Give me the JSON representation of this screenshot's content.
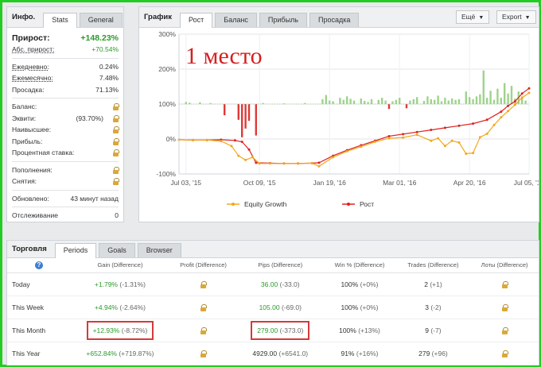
{
  "info": {
    "title": "Инфо.",
    "tabs": [
      "Stats",
      "General"
    ],
    "growth_label": "Прирост:",
    "growth_value": "+148.23%",
    "abs_label": "Абс. прирост:",
    "abs_value": "+70.54%",
    "daily_label": "Ежедневно:",
    "daily_value": "0.24%",
    "monthly_label": "Ежемесячно:",
    "monthly_value": "7.48%",
    "drawdown_label": "Просадка:",
    "drawdown_value": "71.13%",
    "balance_label": "Баланс:",
    "equity_label": "Эквити:",
    "equity_pct": "(93.70%)",
    "highest_label": "Наивысшее:",
    "profit_label": "Прибыль:",
    "interest_label": "Процентная ставка:",
    "deposits_label": "Пополнения:",
    "withdrawals_label": "Снятия:",
    "updated_label": "Обновлено:",
    "updated_value": "43 минут назад",
    "tracking_label": "Отслеживание",
    "tracking_value": "0"
  },
  "chart_panel": {
    "title": "График",
    "tabs": [
      "Рост",
      "Баланс",
      "Прибыль",
      "Просадка"
    ],
    "more_label": "Ещё",
    "export_label": "Export",
    "annotation": "1 место"
  },
  "chart_data": {
    "type": "line",
    "yticks": [
      "300%",
      "200%",
      "100%",
      "0%",
      "-100%"
    ],
    "ylim": [
      -100,
      300
    ],
    "x_ticks": [
      "Jul 03, '15",
      "Oct 09, '15",
      "Jan 19, '16",
      "Mar 01, '16",
      "Apr 20, '16",
      "Jul 05, '16"
    ],
    "legend": [
      "Equity Growth",
      "Рост"
    ],
    "series": [
      {
        "name": "Рост",
        "color": "#dd2222",
        "x": [
          0,
          4,
          8,
          12,
          16,
          18,
          20,
          22,
          26,
          30,
          34,
          38,
          40,
          44,
          48,
          52,
          56,
          60,
          64,
          68,
          72,
          76,
          80,
          84,
          88,
          92,
          94,
          96,
          98,
          100
        ],
        "y": [
          -2,
          -3,
          -3,
          -2,
          -4,
          -8,
          -30,
          -68,
          -69,
          -70,
          -70,
          -69,
          -68,
          -48,
          -32,
          -18,
          -5,
          8,
          14,
          20,
          26,
          32,
          38,
          44,
          55,
          78,
          95,
          108,
          130,
          145
        ]
      },
      {
        "name": "Equity Growth",
        "color": "#f2a81c",
        "x": [
          0,
          4,
          8,
          12,
          15,
          17,
          19,
          21,
          23,
          26,
          30,
          34,
          38,
          40,
          44,
          48,
          52,
          56,
          60,
          64,
          68,
          72,
          74,
          76,
          78,
          80,
          82,
          84,
          86,
          88,
          90,
          92,
          94,
          96,
          98,
          100
        ],
        "y": [
          -2,
          -3,
          -3,
          -6,
          -20,
          -48,
          -60,
          -52,
          -70,
          -70,
          -70,
          -70,
          -69,
          -78,
          -52,
          -35,
          -22,
          -8,
          2,
          4,
          12,
          -5,
          2,
          -20,
          -5,
          -10,
          -42,
          -40,
          5,
          15,
          40,
          62,
          80,
          98,
          118,
          132
        ]
      }
    ],
    "bars": [
      {
        "x": 2,
        "y": 6
      },
      {
        "x": 3,
        "y": 4
      },
      {
        "x": 6,
        "y": 5
      },
      {
        "x": 9,
        "y": 3
      },
      {
        "x": 13,
        "y": -32
      },
      {
        "x": 17,
        "y": -45
      },
      {
        "x": 18,
        "y": -95
      },
      {
        "x": 19,
        "y": -70
      },
      {
        "x": 20,
        "y": -48
      },
      {
        "x": 22,
        "y": -90
      },
      {
        "x": 24,
        "y": 3
      },
      {
        "x": 30,
        "y": 2
      },
      {
        "x": 36,
        "y": 3
      },
      {
        "x": 41,
        "y": 14
      },
      {
        "x": 42,
        "y": 26
      },
      {
        "x": 43,
        "y": 10
      },
      {
        "x": 44,
        "y": 8
      },
      {
        "x": 46,
        "y": 18
      },
      {
        "x": 47,
        "y": 12
      },
      {
        "x": 48,
        "y": 22
      },
      {
        "x": 49,
        "y": 15
      },
      {
        "x": 50,
        "y": 10
      },
      {
        "x": 52,
        "y": 16
      },
      {
        "x": 53,
        "y": 9
      },
      {
        "x": 54,
        "y": 6
      },
      {
        "x": 55,
        "y": 14
      },
      {
        "x": 57,
        "y": 12
      },
      {
        "x": 58,
        "y": 18
      },
      {
        "x": 59,
        "y": 10
      },
      {
        "x": 60,
        "y": -14
      },
      {
        "x": 61,
        "y": 8
      },
      {
        "x": 62,
        "y": 12
      },
      {
        "x": 63,
        "y": 18
      },
      {
        "x": 65,
        "y": -12
      },
      {
        "x": 66,
        "y": 10
      },
      {
        "x": 67,
        "y": 14
      },
      {
        "x": 68,
        "y": 20
      },
      {
        "x": 70,
        "y": 9
      },
      {
        "x": 71,
        "y": 22
      },
      {
        "x": 72,
        "y": 14
      },
      {
        "x": 73,
        "y": 12
      },
      {
        "x": 74,
        "y": 24
      },
      {
        "x": 75,
        "y": 8
      },
      {
        "x": 76,
        "y": 18
      },
      {
        "x": 77,
        "y": 10
      },
      {
        "x": 78,
        "y": 16
      },
      {
        "x": 79,
        "y": 12
      },
      {
        "x": 80,
        "y": 14
      },
      {
        "x": 82,
        "y": 36
      },
      {
        "x": 83,
        "y": 20
      },
      {
        "x": 84,
        "y": 14
      },
      {
        "x": 85,
        "y": 22
      },
      {
        "x": 86,
        "y": 28
      },
      {
        "x": 87,
        "y": 96
      },
      {
        "x": 88,
        "y": 18
      },
      {
        "x": 89,
        "y": 38
      },
      {
        "x": 90,
        "y": 12
      },
      {
        "x": 91,
        "y": 44
      },
      {
        "x": 92,
        "y": 18
      },
      {
        "x": 93,
        "y": 60
      },
      {
        "x": 94,
        "y": 30
      },
      {
        "x": 95,
        "y": 52
      },
      {
        "x": 96,
        "y": 16
      },
      {
        "x": 97,
        "y": 36
      },
      {
        "x": 98,
        "y": 22
      },
      {
        "x": 99,
        "y": 10
      }
    ],
    "bar_color_pos": "#9ed38c",
    "bar_color_neg": "#e03838",
    "grid": true
  },
  "trading": {
    "title": "Торговля",
    "tabs": [
      "Periods",
      "Goals",
      "Browser"
    ],
    "headers": [
      "Gain (Difference)",
      "Profit (Difference)",
      "Pips (Difference)",
      "Win % (Difference)",
      "Trades (Difference)",
      "Лоты (Difference)"
    ],
    "rows": [
      {
        "period": "Today",
        "gain": "+1.79%",
        "gain_diff": "(-1.31%)",
        "pips": "36.00",
        "pips_diff": "(-33.0)",
        "win": "100%",
        "win_diff": "(+0%)",
        "trades": "2",
        "trades_diff": "(+1)"
      },
      {
        "period": "This Week",
        "gain": "+4.94%",
        "gain_diff": "(-2.64%)",
        "pips": "105.00",
        "pips_diff": "(-69.0)",
        "win": "100%",
        "win_diff": "(+0%)",
        "trades": "3",
        "trades_diff": "(-2)"
      },
      {
        "period": "This Month",
        "gain": "+12.93%",
        "gain_diff": "(-8.72%)",
        "pips": "279.00",
        "pips_diff": "(-373.0)",
        "win": "100%",
        "win_diff": "(+13%)",
        "trades": "9",
        "trades_diff": "(-7)"
      },
      {
        "period": "This Year",
        "gain": "+652.84%",
        "gain_diff": "(+719.87%)",
        "pips": "4929.00",
        "pips_diff": "(+6541.0)",
        "win": "91%",
        "win_diff": "(+16%)",
        "trades": "279",
        "trades_diff": "(+96)"
      }
    ]
  }
}
